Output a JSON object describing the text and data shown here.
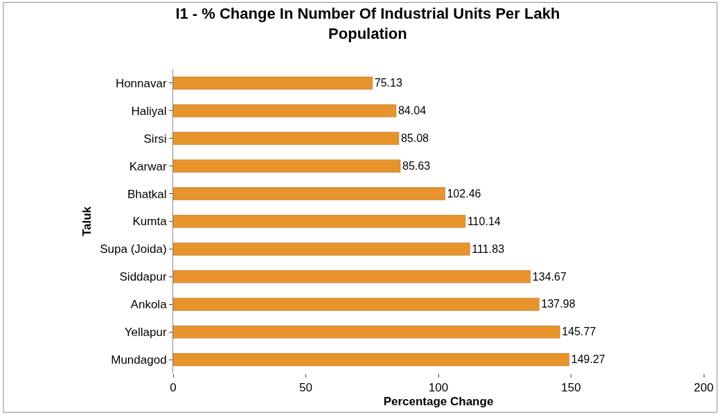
{
  "chart_data": {
    "type": "bar",
    "orientation": "horizontal",
    "title": "I1 - % Change In Number Of Industrial Units Per Lakh Population",
    "xlabel": "Percentage Change",
    "ylabel": "Taluk",
    "categories": [
      "Honnavar",
      "Haliyal",
      "Sirsi",
      "Karwar",
      "Bhatkal",
      "Kumta",
      "Supa (Joida)",
      "Siddapur",
      "Ankola",
      "Yellapur",
      "Mundagod"
    ],
    "values": [
      75.13,
      84.04,
      85.08,
      85.63,
      102.46,
      110.14,
      111.83,
      134.67,
      137.98,
      145.77,
      149.27
    ],
    "color": "#e8942c",
    "data_labels": true,
    "xlim": [
      0,
      200
    ],
    "xticks": [
      0,
      50,
      100,
      150,
      200
    ]
  }
}
